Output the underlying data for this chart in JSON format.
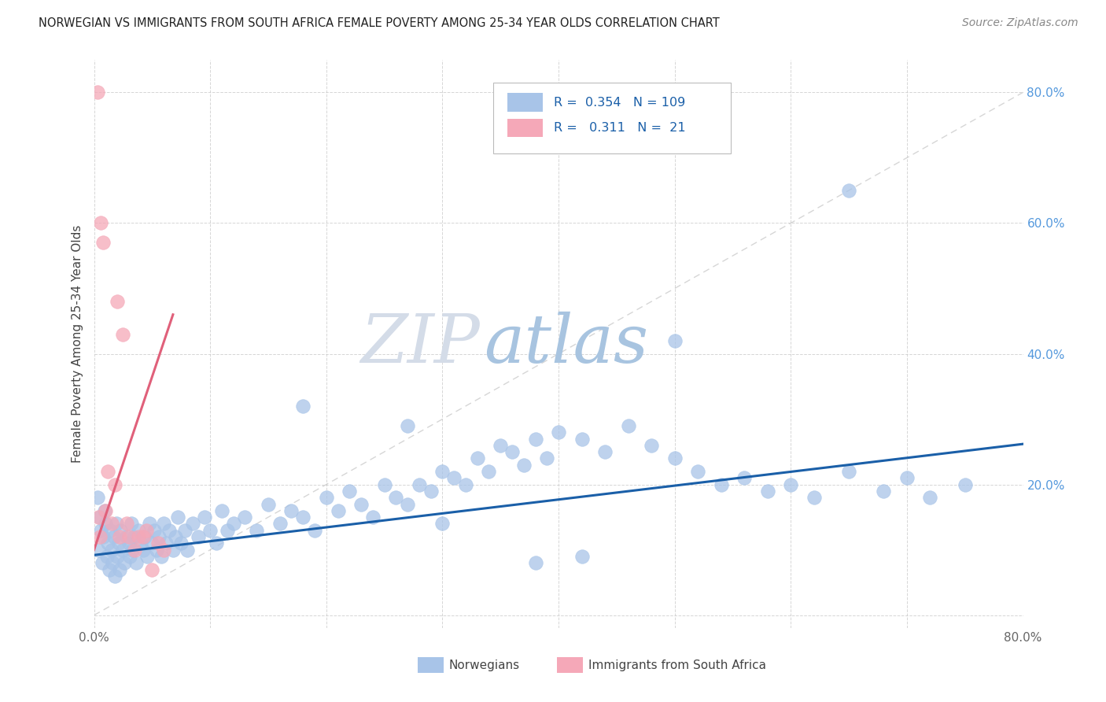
{
  "title": "NORWEGIAN VS IMMIGRANTS FROM SOUTH AFRICA FEMALE POVERTY AMONG 25-34 YEAR OLDS CORRELATION CHART",
  "source": "Source: ZipAtlas.com",
  "ylabel": "Female Poverty Among 25-34 Year Olds",
  "xlim": [
    0.0,
    0.8
  ],
  "ylim": [
    -0.02,
    0.85
  ],
  "norwegians_color": "#a8c4e8",
  "immigrants_color": "#f5a8b8",
  "trendline_norwegian_color": "#1a5fa8",
  "trendline_immigrant_color": "#e0607a",
  "trendline_dashed_color": "#cccccc",
  "R_norwegian": 0.354,
  "N_norwegian": 109,
  "R_immigrant": 0.311,
  "N_immigrant": 21,
  "watermark_zip_color": "#d0d8e8",
  "watermark_atlas_color": "#a8c4e8",
  "nor_x": [
    0.003,
    0.004,
    0.005,
    0.006,
    0.007,
    0.008,
    0.009,
    0.01,
    0.011,
    0.012,
    0.013,
    0.014,
    0.015,
    0.016,
    0.017,
    0.018,
    0.019,
    0.02,
    0.021,
    0.022,
    0.023,
    0.025,
    0.026,
    0.028,
    0.03,
    0.031,
    0.032,
    0.033,
    0.034,
    0.036,
    0.038,
    0.04,
    0.042,
    0.044,
    0.046,
    0.048,
    0.05,
    0.052,
    0.054,
    0.056,
    0.058,
    0.06,
    0.062,
    0.065,
    0.068,
    0.07,
    0.072,
    0.075,
    0.078,
    0.08,
    0.085,
    0.09,
    0.095,
    0.1,
    0.105,
    0.11,
    0.115,
    0.12,
    0.13,
    0.14,
    0.15,
    0.16,
    0.17,
    0.18,
    0.19,
    0.2,
    0.21,
    0.22,
    0.23,
    0.24,
    0.25,
    0.26,
    0.27,
    0.28,
    0.29,
    0.3,
    0.31,
    0.32,
    0.33,
    0.34,
    0.35,
    0.36,
    0.37,
    0.38,
    0.39,
    0.4,
    0.42,
    0.44,
    0.46,
    0.48,
    0.5,
    0.52,
    0.54,
    0.56,
    0.58,
    0.6,
    0.62,
    0.65,
    0.68,
    0.7,
    0.72,
    0.75,
    0.65,
    0.5,
    0.38,
    0.3,
    0.42,
    0.27,
    0.18
  ],
  "nor_y": [
    0.18,
    0.1,
    0.15,
    0.13,
    0.08,
    0.12,
    0.16,
    0.14,
    0.09,
    0.11,
    0.07,
    0.13,
    0.1,
    0.08,
    0.12,
    0.06,
    0.14,
    0.09,
    0.11,
    0.07,
    0.13,
    0.1,
    0.08,
    0.12,
    0.11,
    0.09,
    0.14,
    0.1,
    0.12,
    0.08,
    0.13,
    0.11,
    0.1,
    0.12,
    0.09,
    0.14,
    0.11,
    0.13,
    0.1,
    0.12,
    0.09,
    0.14,
    0.11,
    0.13,
    0.1,
    0.12,
    0.15,
    0.11,
    0.13,
    0.1,
    0.14,
    0.12,
    0.15,
    0.13,
    0.11,
    0.16,
    0.13,
    0.14,
    0.15,
    0.13,
    0.17,
    0.14,
    0.16,
    0.15,
    0.13,
    0.18,
    0.16,
    0.19,
    0.17,
    0.15,
    0.2,
    0.18,
    0.17,
    0.2,
    0.19,
    0.22,
    0.21,
    0.2,
    0.24,
    0.22,
    0.26,
    0.25,
    0.23,
    0.27,
    0.24,
    0.28,
    0.27,
    0.25,
    0.29,
    0.26,
    0.24,
    0.22,
    0.2,
    0.21,
    0.19,
    0.2,
    0.18,
    0.22,
    0.19,
    0.21,
    0.18,
    0.2,
    0.65,
    0.42,
    0.08,
    0.14,
    0.09,
    0.29,
    0.32
  ],
  "imm_x": [
    0.003,
    0.004,
    0.005,
    0.006,
    0.008,
    0.01,
    0.012,
    0.015,
    0.018,
    0.02,
    0.022,
    0.025,
    0.028,
    0.03,
    0.035,
    0.038,
    0.042,
    0.045,
    0.05,
    0.055,
    0.06
  ],
  "imm_y": [
    0.8,
    0.15,
    0.12,
    0.6,
    0.57,
    0.16,
    0.22,
    0.14,
    0.2,
    0.48,
    0.12,
    0.43,
    0.14,
    0.12,
    0.1,
    0.12,
    0.12,
    0.13,
    0.07,
    0.11,
    0.1
  ]
}
